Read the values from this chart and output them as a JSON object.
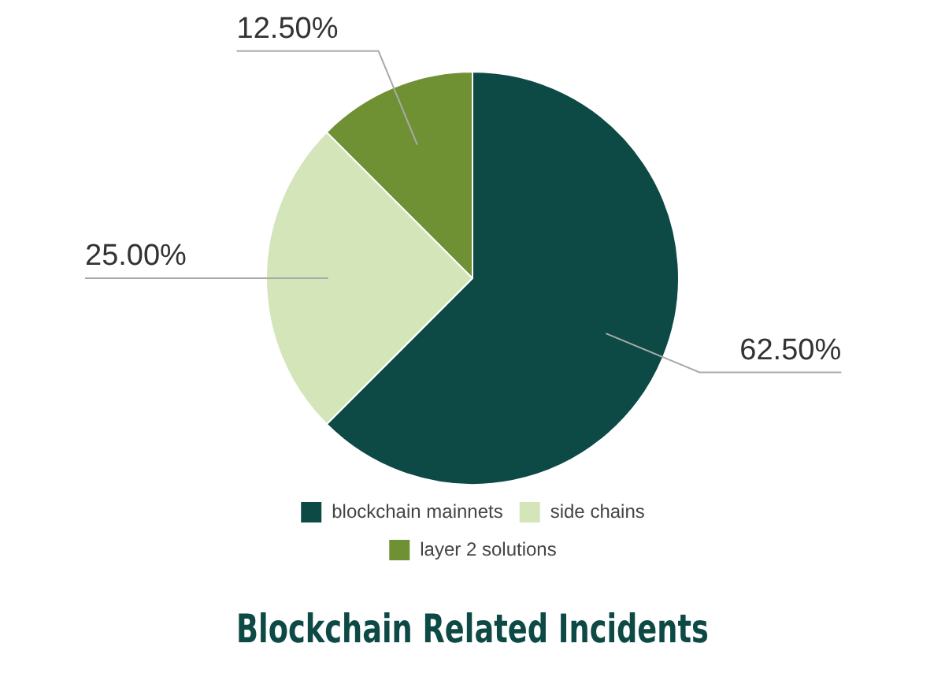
{
  "chart_data": {
    "type": "pie",
    "title": "Blockchain Related Incidents",
    "categories": [
      "blockchain mainnets",
      "side chains",
      "layer 2 solutions"
    ],
    "values": [
      62.5,
      25,
      12.5
    ],
    "value_labels": [
      "62.50%",
      "25.00%",
      "12.50%"
    ],
    "colors": [
      "#0d4a45",
      "#d3e5b9",
      "#6f9134"
    ],
    "legend": "bottom"
  }
}
